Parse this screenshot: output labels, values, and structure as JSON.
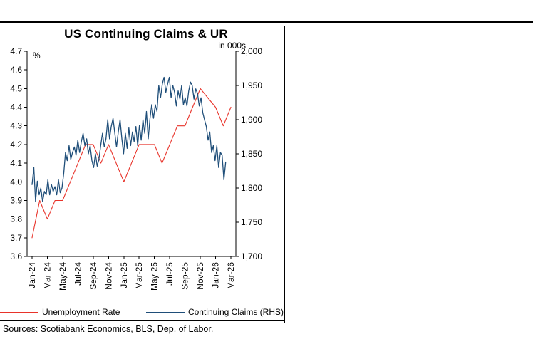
{
  "legend": {
    "note": "legend labels are bound from chart_data.series names"
  },
  "footer": {
    "sources": "Sources: Scotiabank Economics, BLS, Dep. of Labor."
  },
  "colors": {
    "axis": "#000000",
    "unemployment_line": "#e8332a",
    "claims_line": "#1f4e79"
  },
  "chart_data": {
    "type": "line",
    "title": "US Continuing Claims & UR",
    "x_tick_labels": [
      "Jan-24",
      "Mar-24",
      "May-24",
      "Jul-24",
      "Sep-24",
      "Nov-24",
      "Jan-25",
      "Mar-25",
      "May-25",
      "Jul-25",
      "Sep-25",
      "Nov-25",
      "Jan-26",
      "Mar-26"
    ],
    "months_span": 26,
    "weeks_per_month": 4.345,
    "grid": false,
    "legend_position": "bottom",
    "left_axis": {
      "units": "%",
      "min": 3.6,
      "max": 4.7,
      "step": 0.1,
      "ticks": [
        "4.7",
        "4.6",
        "4.5",
        "4.4",
        "4.3",
        "4.2",
        "4.1",
        "4.0",
        "3.9",
        "3.8",
        "3.7",
        "3.6"
      ]
    },
    "right_axis": {
      "units": "in 000s",
      "min": 1700,
      "max": 2000,
      "step": 50,
      "ticks": [
        "2,000",
        "1,950",
        "1,900",
        "1,850",
        "1,800",
        "1,750",
        "1,700"
      ]
    },
    "series": [
      {
        "name": "Unemployment Rate",
        "axis": "left",
        "x": "monthly",
        "color": "#e8332a",
        "values": [
          3.7,
          3.9,
          3.8,
          3.9,
          3.9,
          4.0,
          4.1,
          4.2,
          4.2,
          4.1,
          4.2,
          4.1,
          4.0,
          4.1,
          4.2,
          4.2,
          4.2,
          4.1,
          4.2,
          4.3,
          4.3,
          4.4,
          4.5,
          4.45,
          4.4,
          4.3,
          4.4
        ]
      },
      {
        "name": "Continuing Claims (RHS)",
        "axis": "right",
        "x": "weekly",
        "color": "#1f4e79",
        "values": [
          1805,
          1830,
          1780,
          1810,
          1790,
          1800,
          1780,
          1795,
          1790,
          1812,
          1790,
          1805,
          1795,
          1802,
          1790,
          1812,
          1793,
          1800,
          1822,
          1852,
          1840,
          1862,
          1842,
          1852,
          1860,
          1848,
          1870,
          1852,
          1868,
          1880,
          1862,
          1872,
          1850,
          1862,
          1840,
          1830,
          1850,
          1832,
          1842,
          1862,
          1880,
          1860,
          1872,
          1900,
          1872,
          1890,
          1902,
          1880,
          1860,
          1882,
          1900,
          1872,
          1850,
          1880,
          1858,
          1888,
          1862,
          1882,
          1868,
          1890,
          1862,
          1892,
          1870,
          1900,
          1880,
          1912,
          1872,
          1902,
          1922,
          1902,
          1922,
          1912,
          1950,
          1932,
          1952,
          1962,
          1940,
          1952,
          1962,
          1932,
          1950,
          1940,
          1920,
          1942,
          1930,
          1950,
          1922,
          1932,
          1920,
          1942,
          1955,
          1950,
          1930,
          1945,
          1938,
          1920,
          1932,
          1910,
          1900,
          1890,
          1870,
          1882,
          1852,
          1862,
          1840,
          1862,
          1830,
          1852,
          1848,
          1812,
          1838
        ]
      }
    ]
  }
}
